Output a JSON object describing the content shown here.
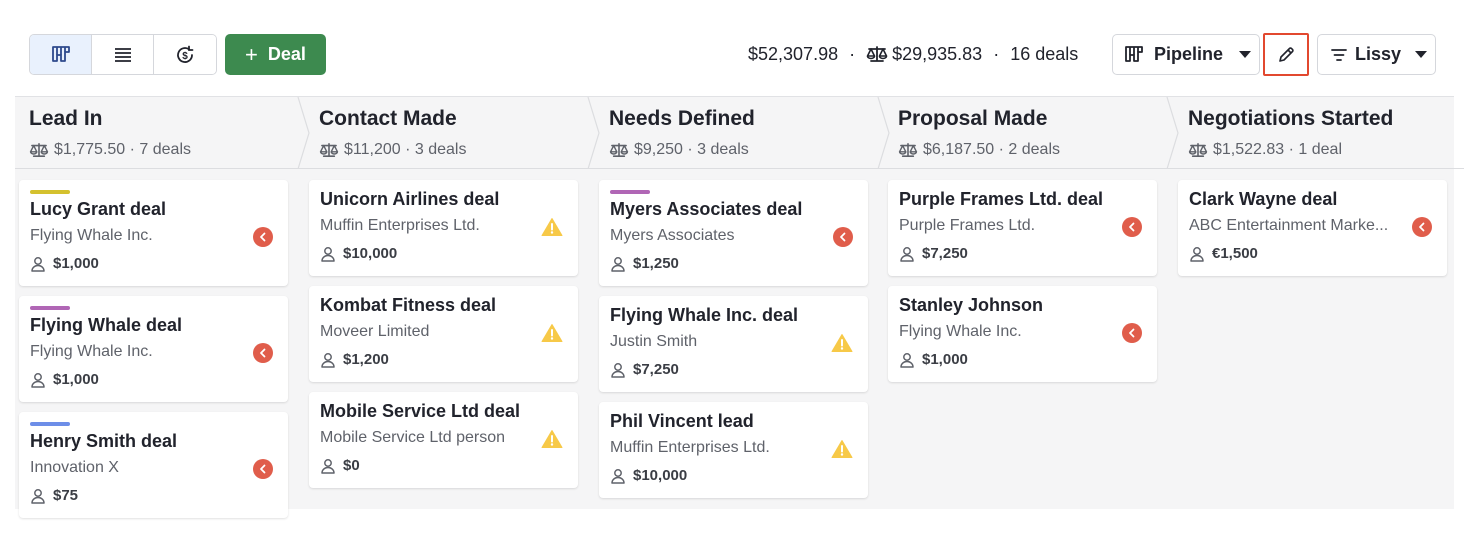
{
  "toolbar": {
    "views": [
      {
        "name": "pipeline-view",
        "icon": "kanban-icon",
        "active": true
      },
      {
        "name": "list-view",
        "icon": "list-icon",
        "active": false
      },
      {
        "name": "forecast-view",
        "icon": "forecast-icon",
        "active": false
      }
    ],
    "add_deal_label": "Deal",
    "summary": {
      "total": "$52,307.98",
      "separator": "·",
      "weighted": "$29,935.83",
      "deal_count": "16 deals"
    },
    "pipeline_label": "Pipeline",
    "filter_label": "Lissy"
  },
  "colors": {
    "accent_green": "#3d8a4f",
    "overdue_red": "#e05d4b",
    "warning_yellow": "#f7c948",
    "highlight": "#e2482f"
  },
  "stages": [
    {
      "title": "Lead In",
      "meta": "$1,775.50 · 7 deals",
      "deals": [
        {
          "title": "Lucy Grant deal",
          "org": "Flying Whale Inc.",
          "value": "$1,000",
          "status": "overdue",
          "label_color": "#d4c12e"
        },
        {
          "title": "Flying Whale deal",
          "org": "Flying Whale Inc.",
          "value": "$1,000",
          "status": "overdue",
          "label_color": "#b066b5"
        },
        {
          "title": "Henry Smith deal",
          "org": "Innovation X",
          "value": "$75",
          "status": "overdue",
          "label_color": "#6d8ee8"
        }
      ]
    },
    {
      "title": "Contact Made",
      "meta": "$11,200 · 3 deals",
      "deals": [
        {
          "title": "Unicorn Airlines deal",
          "org": "Muffin Enterprises Ltd.",
          "value": "$10,000",
          "status": "warning",
          "label_color": null
        },
        {
          "title": "Kombat Fitness deal",
          "org": "Moveer Limited",
          "value": "$1,200",
          "status": "warning",
          "label_color": null
        },
        {
          "title": "Mobile Service Ltd deal",
          "org": "Mobile Service Ltd person",
          "value": "$0",
          "status": "warning",
          "label_color": null
        }
      ]
    },
    {
      "title": "Needs Defined",
      "meta": "$9,250 · 3 deals",
      "deals": [
        {
          "title": "Myers Associates deal",
          "org": "Myers Associates",
          "value": "$1,250",
          "status": "overdue",
          "label_color": "#b066b5"
        },
        {
          "title": "Flying Whale Inc. deal",
          "org": "Justin Smith",
          "value": "$7,250",
          "status": "warning",
          "label_color": null
        },
        {
          "title": "Phil Vincent lead",
          "org": "Muffin Enterprises Ltd.",
          "value": "$10,000",
          "status": "warning",
          "label_color": null
        }
      ]
    },
    {
      "title": "Proposal Made",
      "meta": "$6,187.50 · 2 deals",
      "deals": [
        {
          "title": "Purple Frames Ltd. deal",
          "org": "Purple Frames Ltd.",
          "value": "$7,250",
          "status": "overdue",
          "label_color": null
        },
        {
          "title": "Stanley Johnson",
          "org": "Flying Whale Inc.",
          "value": "$1,000",
          "status": "overdue",
          "label_color": null
        }
      ]
    },
    {
      "title": "Negotiations Started",
      "meta": "$1,522.83 · 1 deal",
      "deals": [
        {
          "title": "Clark Wayne deal",
          "org": "ABC Entertainment Marke...",
          "value": "€1,500",
          "status": "overdue",
          "label_color": null
        }
      ]
    }
  ]
}
